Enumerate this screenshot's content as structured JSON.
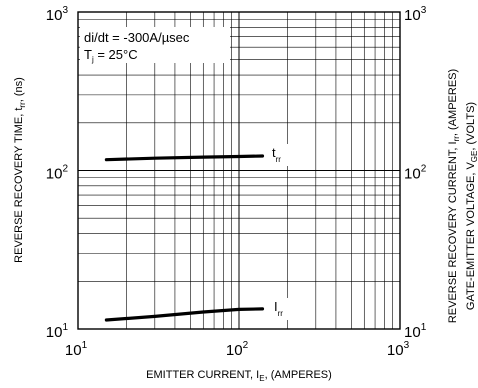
{
  "chart_data": {
    "type": "line",
    "x_axis": {
      "label_main": "EMITTER CURRENT, I",
      "label_sub": "E",
      "label_tail": ", (AMPERES)",
      "scale": "log",
      "range": [
        10,
        1000
      ],
      "ticks": [
        {
          "base": "10",
          "exp": "1",
          "value": 10
        },
        {
          "base": "10",
          "exp": "2",
          "value": 100
        },
        {
          "base": "10",
          "exp": "3",
          "value": 1000
        }
      ]
    },
    "y_left": {
      "label_main": "REVERSE RECOVERY TIME, t",
      "label_sub": "rr",
      "label_tail": ", (ns)",
      "scale": "log",
      "range": [
        10,
        1000
      ],
      "ticks": [
        {
          "base": "10",
          "exp": "1",
          "value": 10
        },
        {
          "base": "10",
          "exp": "2",
          "value": 100
        },
        {
          "base": "10",
          "exp": "3",
          "value": 1000
        }
      ]
    },
    "y_right": {
      "label_main": "REVERSE RECOVERY CURRENT, I",
      "label_sub": "rr",
      "label_tail": ", (AMPERES)",
      "label2_main": "GATE-EMITTER VOLTAGE, V",
      "label2_sub": "GE",
      "label2_tail": ", (VOLTS)",
      "scale": "log",
      "range": [
        10,
        1000
      ],
      "ticks": [
        {
          "base": "10",
          "exp": "1",
          "value": 10
        },
        {
          "base": "10",
          "exp": "2",
          "value": 100
        },
        {
          "base": "10",
          "exp": "3",
          "value": 1000
        }
      ]
    },
    "grid": true,
    "annotation": {
      "line1": "di/dt = -300A/µsec",
      "line2_main": "T",
      "line2_sub": "j",
      "line2_tail": " = 25°C"
    },
    "series": [
      {
        "name_main": "t",
        "name_sub": "rr",
        "points": [
          [
            15,
            117
          ],
          [
            30,
            119.5
          ],
          [
            60,
            121.5
          ],
          [
            100,
            122.5
          ],
          [
            140,
            123.5
          ]
        ]
      },
      {
        "name_main": "I",
        "name_sub": "rr",
        "points": [
          [
            15,
            11.4
          ],
          [
            30,
            12
          ],
          [
            60,
            12.8
          ],
          [
            100,
            13.3
          ],
          [
            140,
            13.4
          ]
        ]
      }
    ]
  }
}
